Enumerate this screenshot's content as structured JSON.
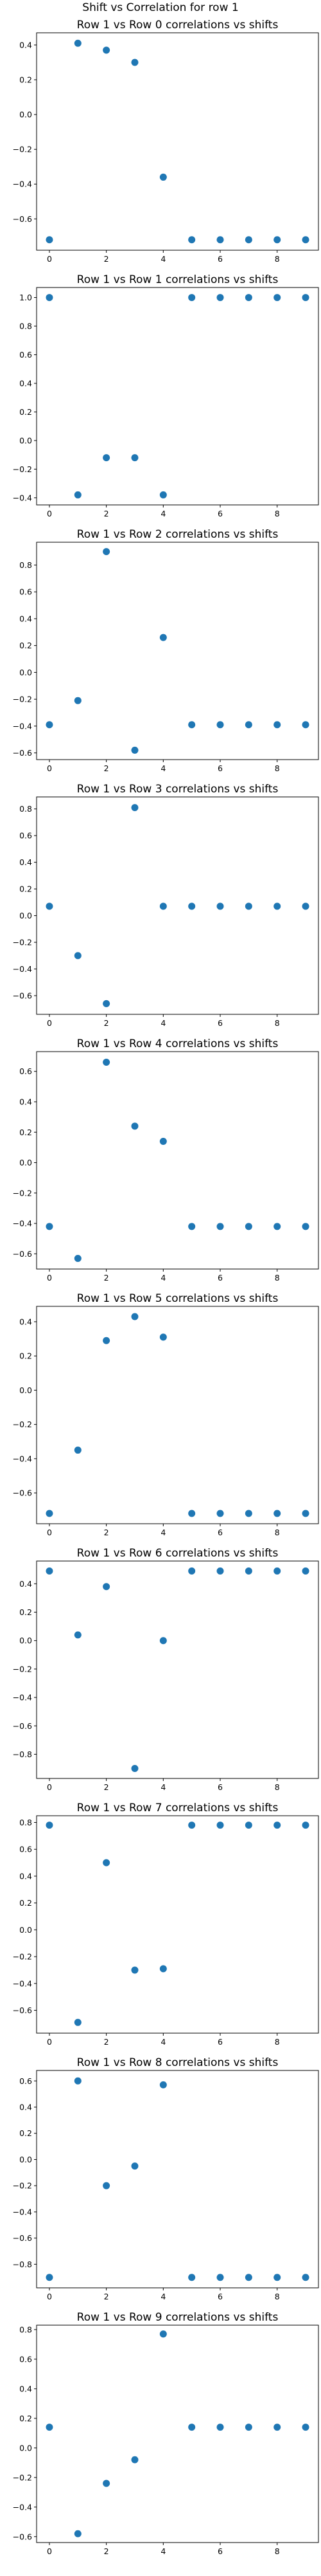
{
  "figure": {
    "title": "Shift vs Correlation for row 1",
    "marker_color": "#1f77b4"
  },
  "chart_data": [
    {
      "type": "scatter",
      "title": "Row 1 vs Row 0 correlations vs shifts",
      "x": [
        0,
        1,
        2,
        3,
        4,
        5,
        6,
        7,
        8,
        9
      ],
      "y": [
        -0.72,
        0.41,
        0.37,
        0.3,
        -0.36,
        -0.72,
        -0.72,
        -0.72,
        -0.72,
        -0.72
      ],
      "xlim": [
        -0.45,
        9.45
      ],
      "ylim": [
        -0.78,
        0.47
      ],
      "xticks": [
        0,
        2,
        4,
        6,
        8
      ],
      "yticks": [
        -0.6,
        -0.4,
        -0.2,
        0.0,
        0.2,
        0.4
      ],
      "grid": false
    },
    {
      "type": "scatter",
      "title": "Row 1 vs Row 1 correlations vs shifts",
      "x": [
        0,
        1,
        2,
        3,
        4,
        5,
        6,
        7,
        8,
        9
      ],
      "y": [
        1.0,
        -0.38,
        -0.12,
        -0.12,
        -0.38,
        1.0,
        1.0,
        1.0,
        1.0,
        1.0
      ],
      "xlim": [
        -0.45,
        9.45
      ],
      "ylim": [
        -0.45,
        1.07
      ],
      "xticks": [
        0,
        2,
        4,
        6,
        8
      ],
      "yticks": [
        -0.4,
        -0.2,
        0.0,
        0.2,
        0.4,
        0.6,
        0.8,
        1.0
      ],
      "grid": false
    },
    {
      "type": "scatter",
      "title": "Row 1 vs Row 2 correlations vs shifts",
      "x": [
        0,
        1,
        2,
        3,
        4,
        5,
        6,
        7,
        8,
        9
      ],
      "y": [
        -0.39,
        -0.21,
        0.9,
        -0.58,
        0.26,
        -0.39,
        -0.39,
        -0.39,
        -0.39,
        -0.39
      ],
      "xlim": [
        -0.45,
        9.45
      ],
      "ylim": [
        -0.65,
        0.97
      ],
      "xticks": [
        0,
        2,
        4,
        6,
        8
      ],
      "yticks": [
        -0.6,
        -0.4,
        -0.2,
        0.0,
        0.2,
        0.4,
        0.6,
        0.8
      ],
      "grid": false
    },
    {
      "type": "scatter",
      "title": "Row 1 vs Row 3 correlations vs shifts",
      "x": [
        0,
        1,
        2,
        3,
        4,
        5,
        6,
        7,
        8,
        9
      ],
      "y": [
        0.07,
        -0.3,
        -0.66,
        0.81,
        0.07,
        0.07,
        0.07,
        0.07,
        0.07,
        0.07
      ],
      "xlim": [
        -0.45,
        9.45
      ],
      "ylim": [
        -0.74,
        0.89
      ],
      "xticks": [
        0,
        2,
        4,
        6,
        8
      ],
      "yticks": [
        -0.6,
        -0.4,
        -0.2,
        0.0,
        0.2,
        0.4,
        0.6,
        0.8
      ],
      "grid": false
    },
    {
      "type": "scatter",
      "title": "Row 1 vs Row 4 correlations vs shifts",
      "x": [
        0,
        1,
        2,
        3,
        4,
        5,
        6,
        7,
        8,
        9
      ],
      "y": [
        -0.42,
        -0.63,
        0.66,
        0.24,
        0.14,
        -0.42,
        -0.42,
        -0.42,
        -0.42,
        -0.42
      ],
      "xlim": [
        -0.45,
        9.45
      ],
      "ylim": [
        -0.7,
        0.73
      ],
      "xticks": [
        0,
        2,
        4,
        6,
        8
      ],
      "yticks": [
        -0.6,
        -0.4,
        -0.2,
        0.0,
        0.2,
        0.4,
        0.6
      ],
      "grid": false
    },
    {
      "type": "scatter",
      "title": "Row 1 vs Row 5 correlations vs shifts",
      "x": [
        0,
        1,
        2,
        3,
        4,
        5,
        6,
        7,
        8,
        9
      ],
      "y": [
        -0.72,
        -0.35,
        0.29,
        0.43,
        0.31,
        -0.72,
        -0.72,
        -0.72,
        -0.72,
        -0.72
      ],
      "xlim": [
        -0.45,
        9.45
      ],
      "ylim": [
        -0.78,
        0.49
      ],
      "xticks": [
        0,
        2,
        4,
        6,
        8
      ],
      "yticks": [
        -0.6,
        -0.4,
        -0.2,
        0.0,
        0.2,
        0.4
      ],
      "grid": false
    },
    {
      "type": "scatter",
      "title": "Row 1 vs Row 6 correlations vs shifts",
      "x": [
        0,
        1,
        2,
        3,
        4,
        5,
        6,
        7,
        8,
        9
      ],
      "y": [
        0.49,
        0.04,
        0.38,
        -0.9,
        0.0,
        0.49,
        0.49,
        0.49,
        0.49,
        0.49
      ],
      "xlim": [
        -0.45,
        9.45
      ],
      "ylim": [
        -0.97,
        0.56
      ],
      "xticks": [
        0,
        2,
        4,
        6,
        8
      ],
      "yticks": [
        -0.8,
        -0.6,
        -0.4,
        -0.2,
        0.0,
        0.2,
        0.4
      ],
      "grid": false
    },
    {
      "type": "scatter",
      "title": "Row 1 vs Row 7 correlations vs shifts",
      "x": [
        0,
        1,
        2,
        3,
        4,
        5,
        6,
        7,
        8,
        9
      ],
      "y": [
        0.78,
        -0.69,
        0.5,
        -0.3,
        -0.29,
        0.78,
        0.78,
        0.78,
        0.78,
        0.78
      ],
      "xlim": [
        -0.45,
        9.45
      ],
      "ylim": [
        -0.77,
        0.85
      ],
      "xticks": [
        0,
        2,
        4,
        6,
        8
      ],
      "yticks": [
        -0.6,
        -0.4,
        -0.2,
        0.0,
        0.2,
        0.4,
        0.6,
        0.8
      ],
      "grid": false
    },
    {
      "type": "scatter",
      "title": "Row 1 vs Row 8 correlations vs shifts",
      "x": [
        0,
        1,
        2,
        3,
        4,
        5,
        6,
        7,
        8,
        9
      ],
      "y": [
        -0.9,
        0.6,
        -0.2,
        -0.05,
        0.57,
        -0.9,
        -0.9,
        -0.9,
        -0.9,
        -0.9
      ],
      "xlim": [
        -0.45,
        9.45
      ],
      "ylim": [
        -0.98,
        0.68
      ],
      "xticks": [
        0,
        2,
        4,
        6,
        8
      ],
      "yticks": [
        -0.8,
        -0.6,
        -0.4,
        -0.2,
        0.0,
        0.2,
        0.4,
        0.6
      ],
      "grid": false
    },
    {
      "type": "scatter",
      "title": "Row 1 vs Row 9 correlations vs shifts",
      "x": [
        0,
        1,
        2,
        3,
        4,
        5,
        6,
        7,
        8,
        9
      ],
      "y": [
        0.14,
        -0.58,
        -0.24,
        -0.08,
        0.77,
        0.14,
        0.14,
        0.14,
        0.14,
        0.14
      ],
      "xlim": [
        -0.45,
        9.45
      ],
      "ylim": [
        -0.64,
        0.83
      ],
      "xticks": [
        0,
        2,
        4,
        6,
        8
      ],
      "yticks": [
        -0.6,
        -0.4,
        -0.2,
        0.0,
        0.2,
        0.4,
        0.6,
        0.8
      ],
      "grid": false
    }
  ]
}
